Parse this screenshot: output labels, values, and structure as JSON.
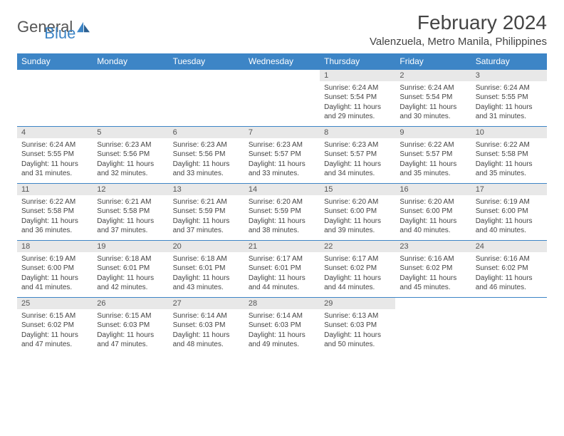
{
  "brand": {
    "part1": "General",
    "part2": "Blue"
  },
  "title": "February 2024",
  "location": "Valenzuela, Metro Manila, Philippines",
  "colors": {
    "accent": "#3d85c6",
    "header_text": "#ffffff",
    "daynum_bg": "#e8e8e8",
    "text": "#444444"
  },
  "weekdays": [
    "Sunday",
    "Monday",
    "Tuesday",
    "Wednesday",
    "Thursday",
    "Friday",
    "Saturday"
  ],
  "weeks": [
    [
      null,
      null,
      null,
      null,
      {
        "n": "1",
        "sr": "6:24 AM",
        "ss": "5:54 PM",
        "dl": "11 hours and 29 minutes."
      },
      {
        "n": "2",
        "sr": "6:24 AM",
        "ss": "5:54 PM",
        "dl": "11 hours and 30 minutes."
      },
      {
        "n": "3",
        "sr": "6:24 AM",
        "ss": "5:55 PM",
        "dl": "11 hours and 31 minutes."
      }
    ],
    [
      {
        "n": "4",
        "sr": "6:24 AM",
        "ss": "5:55 PM",
        "dl": "11 hours and 31 minutes."
      },
      {
        "n": "5",
        "sr": "6:23 AM",
        "ss": "5:56 PM",
        "dl": "11 hours and 32 minutes."
      },
      {
        "n": "6",
        "sr": "6:23 AM",
        "ss": "5:56 PM",
        "dl": "11 hours and 33 minutes."
      },
      {
        "n": "7",
        "sr": "6:23 AM",
        "ss": "5:57 PM",
        "dl": "11 hours and 33 minutes."
      },
      {
        "n": "8",
        "sr": "6:23 AM",
        "ss": "5:57 PM",
        "dl": "11 hours and 34 minutes."
      },
      {
        "n": "9",
        "sr": "6:22 AM",
        "ss": "5:57 PM",
        "dl": "11 hours and 35 minutes."
      },
      {
        "n": "10",
        "sr": "6:22 AM",
        "ss": "5:58 PM",
        "dl": "11 hours and 35 minutes."
      }
    ],
    [
      {
        "n": "11",
        "sr": "6:22 AM",
        "ss": "5:58 PM",
        "dl": "11 hours and 36 minutes."
      },
      {
        "n": "12",
        "sr": "6:21 AM",
        "ss": "5:58 PM",
        "dl": "11 hours and 37 minutes."
      },
      {
        "n": "13",
        "sr": "6:21 AM",
        "ss": "5:59 PM",
        "dl": "11 hours and 37 minutes."
      },
      {
        "n": "14",
        "sr": "6:20 AM",
        "ss": "5:59 PM",
        "dl": "11 hours and 38 minutes."
      },
      {
        "n": "15",
        "sr": "6:20 AM",
        "ss": "6:00 PM",
        "dl": "11 hours and 39 minutes."
      },
      {
        "n": "16",
        "sr": "6:20 AM",
        "ss": "6:00 PM",
        "dl": "11 hours and 40 minutes."
      },
      {
        "n": "17",
        "sr": "6:19 AM",
        "ss": "6:00 PM",
        "dl": "11 hours and 40 minutes."
      }
    ],
    [
      {
        "n": "18",
        "sr": "6:19 AM",
        "ss": "6:00 PM",
        "dl": "11 hours and 41 minutes."
      },
      {
        "n": "19",
        "sr": "6:18 AM",
        "ss": "6:01 PM",
        "dl": "11 hours and 42 minutes."
      },
      {
        "n": "20",
        "sr": "6:18 AM",
        "ss": "6:01 PM",
        "dl": "11 hours and 43 minutes."
      },
      {
        "n": "21",
        "sr": "6:17 AM",
        "ss": "6:01 PM",
        "dl": "11 hours and 44 minutes."
      },
      {
        "n": "22",
        "sr": "6:17 AM",
        "ss": "6:02 PM",
        "dl": "11 hours and 44 minutes."
      },
      {
        "n": "23",
        "sr": "6:16 AM",
        "ss": "6:02 PM",
        "dl": "11 hours and 45 minutes."
      },
      {
        "n": "24",
        "sr": "6:16 AM",
        "ss": "6:02 PM",
        "dl": "11 hours and 46 minutes."
      }
    ],
    [
      {
        "n": "25",
        "sr": "6:15 AM",
        "ss": "6:02 PM",
        "dl": "11 hours and 47 minutes."
      },
      {
        "n": "26",
        "sr": "6:15 AM",
        "ss": "6:03 PM",
        "dl": "11 hours and 47 minutes."
      },
      {
        "n": "27",
        "sr": "6:14 AM",
        "ss": "6:03 PM",
        "dl": "11 hours and 48 minutes."
      },
      {
        "n": "28",
        "sr": "6:14 AM",
        "ss": "6:03 PM",
        "dl": "11 hours and 49 minutes."
      },
      {
        "n": "29",
        "sr": "6:13 AM",
        "ss": "6:03 PM",
        "dl": "11 hours and 50 minutes."
      },
      null,
      null
    ]
  ],
  "labels": {
    "sunrise": "Sunrise:",
    "sunset": "Sunset:",
    "daylight": "Daylight:"
  }
}
